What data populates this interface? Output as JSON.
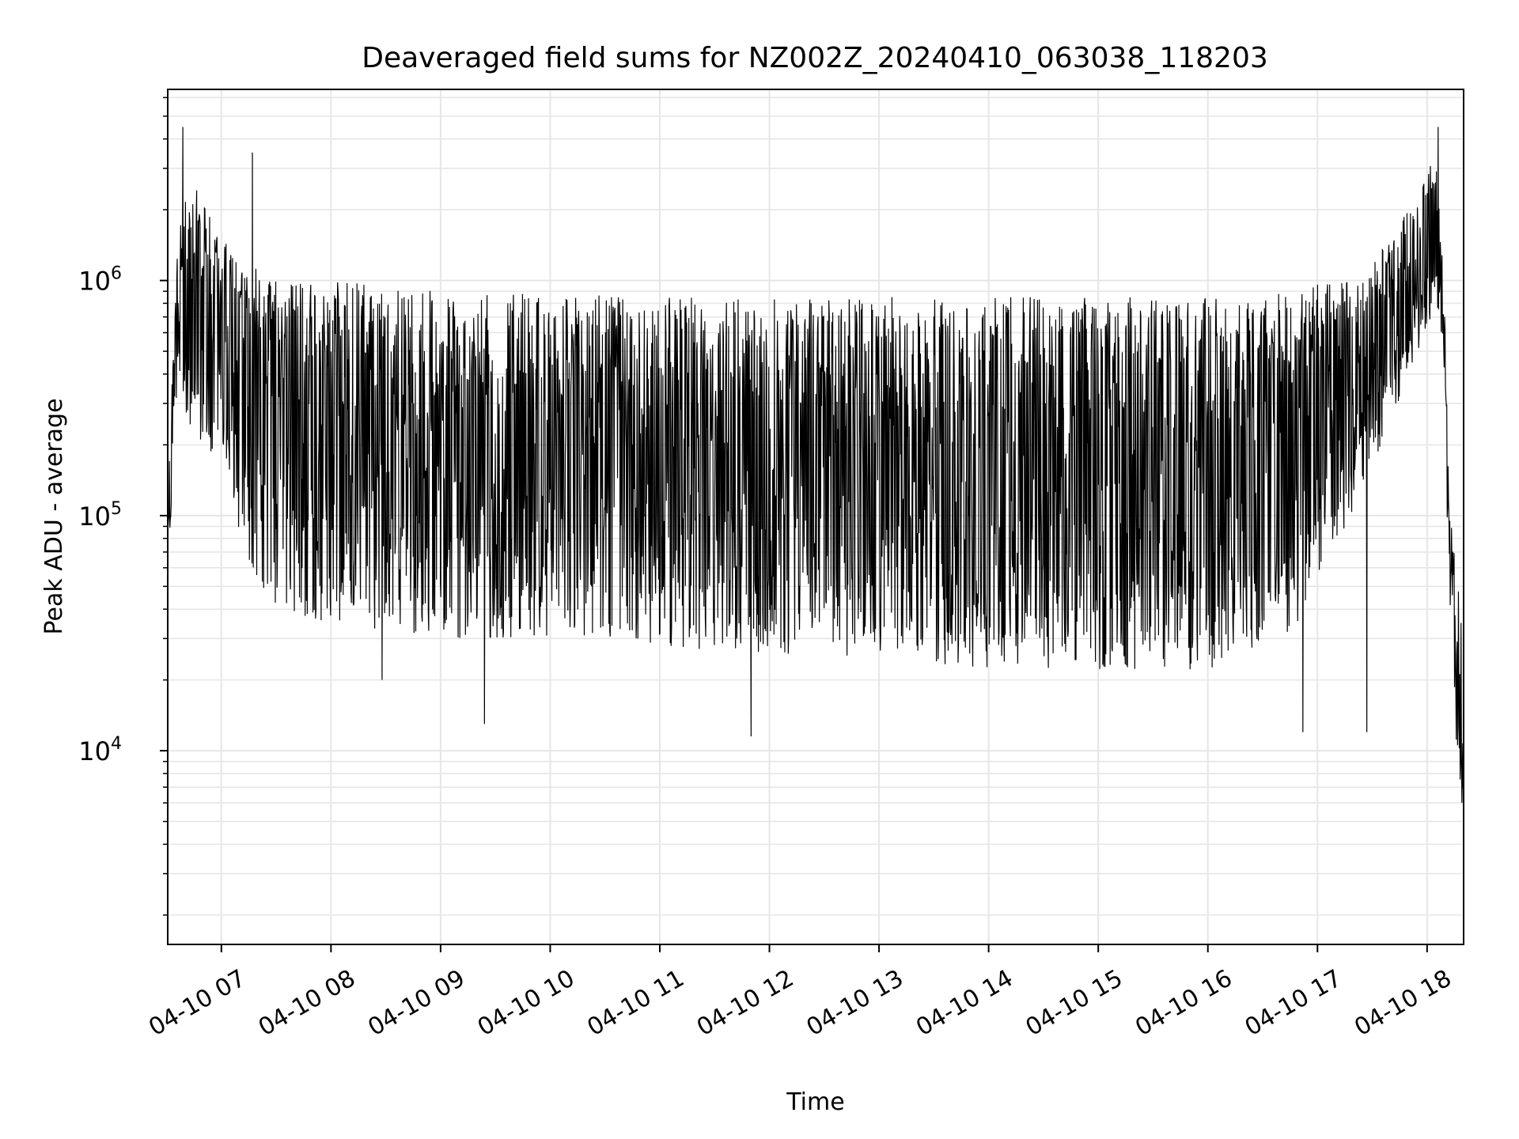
{
  "chart_data": {
    "type": "line",
    "title": "Deaveraged field sums for NZ002Z_20240410_063038_118203",
    "xlabel": "Time",
    "ylabel": "Peak ADU - average",
    "x_axis": {
      "kind": "datetime",
      "range": [
        "2024-04-10T06:30:38",
        "2024-04-10T18:20:00"
      ],
      "ticks": [
        {
          "value": "2024-04-10T07:00",
          "label": "04-10 07"
        },
        {
          "value": "2024-04-10T08:00",
          "label": "04-10 08"
        },
        {
          "value": "2024-04-10T09:00",
          "label": "04-10 09"
        },
        {
          "value": "2024-04-10T10:00",
          "label": "04-10 10"
        },
        {
          "value": "2024-04-10T11:00",
          "label": "04-10 11"
        },
        {
          "value": "2024-04-10T12:00",
          "label": "04-10 12"
        },
        {
          "value": "2024-04-10T13:00",
          "label": "04-10 13"
        },
        {
          "value": "2024-04-10T14:00",
          "label": "04-10 14"
        },
        {
          "value": "2024-04-10T15:00",
          "label": "04-10 15"
        },
        {
          "value": "2024-04-10T16:00",
          "label": "04-10 16"
        },
        {
          "value": "2024-04-10T17:00",
          "label": "04-10 17"
        },
        {
          "value": "2024-04-10T18:00",
          "label": "04-10 18"
        }
      ]
    },
    "y_axis": {
      "scale": "log",
      "range": [
        1500,
        6500000
      ],
      "ticks": [
        {
          "value": 10000,
          "base": "10",
          "exp": "4"
        },
        {
          "value": 100000,
          "base": "10",
          "exp": "5"
        },
        {
          "value": 1000000,
          "base": "10",
          "exp": "6"
        }
      ]
    },
    "grid": true,
    "line_color": "#000000",
    "grid_color": "#e6e6e6",
    "series": [
      {
        "envelope": [
          {
            "t": "2024-04-10T06:30:38",
            "low": 55000,
            "high": 120000,
            "trend": 90000
          },
          {
            "t": "2024-04-10T06:36:00",
            "low": 350000,
            "high": 1500000,
            "trend": 800000
          },
          {
            "t": "2024-04-10T06:42:00",
            "low": 250000,
            "high": 3000000,
            "trend": 1000000
          },
          {
            "t": "2024-04-10T07:00:00",
            "low": 150000,
            "high": 1500000,
            "trend": 700000
          },
          {
            "t": "2024-04-10T07:15:00",
            "low": 60000,
            "high": 1200000,
            "trend": 400000
          },
          {
            "t": "2024-04-10T07:30:00",
            "low": 40000,
            "high": 1000000,
            "trend": 300000
          },
          {
            "t": "2024-04-10T08:00:00",
            "low": 35000,
            "high": 1000000,
            "trend": 250000
          },
          {
            "t": "2024-04-10T09:00:00",
            "low": 30000,
            "high": 900000,
            "trend": 200000
          },
          {
            "t": "2024-04-10T10:00:00",
            "low": 30000,
            "high": 900000,
            "trend": 200000
          },
          {
            "t": "2024-04-10T11:00:00",
            "low": 28000,
            "high": 850000,
            "trend": 180000
          },
          {
            "t": "2024-04-10T12:00:00",
            "low": 25000,
            "high": 850000,
            "trend": 170000
          },
          {
            "t": "2024-04-10T13:00:00",
            "low": 25000,
            "high": 850000,
            "trend": 170000
          },
          {
            "t": "2024-04-10T14:00:00",
            "low": 22000,
            "high": 850000,
            "trend": 160000
          },
          {
            "t": "2024-04-10T15:00:00",
            "low": 22000,
            "high": 850000,
            "trend": 160000
          },
          {
            "t": "2024-04-10T16:00:00",
            "low": 22000,
            "high": 850000,
            "trend": 170000
          },
          {
            "t": "2024-04-10T16:45:00",
            "low": 30000,
            "high": 900000,
            "trend": 220000
          },
          {
            "t": "2024-04-10T17:30:00",
            "low": 150000,
            "high": 1200000,
            "trend": 450000
          },
          {
            "t": "2024-04-10T17:50:00",
            "low": 400000,
            "high": 2000000,
            "trend": 900000
          },
          {
            "t": "2024-04-10T18:05:00",
            "low": 800000,
            "high": 3500000,
            "trend": 1500000
          },
          {
            "t": "2024-04-10T18:09:00",
            "low": 500000,
            "high": 1200000,
            "trend": 800000
          },
          {
            "t": "2024-04-10T18:12:00",
            "low": 40000,
            "high": 120000,
            "trend": 60000
          },
          {
            "t": "2024-04-10T18:17:00",
            "low": 8000,
            "high": 50000,
            "trend": 20000
          },
          {
            "t": "2024-04-10T18:20:00",
            "low": 6000,
            "high": 30000,
            "trend": 10000
          }
        ],
        "notable_points": [
          {
            "t": "2024-04-10T06:39:00",
            "value": 4500000
          },
          {
            "t": "2024-04-10T07:17:00",
            "value": 3500000
          },
          {
            "t": "2024-04-10T08:28:00",
            "value": 20000
          },
          {
            "t": "2024-04-10T09:24:00",
            "value": 13000
          },
          {
            "t": "2024-04-10T11:50:00",
            "value": 11500
          },
          {
            "t": "2024-04-10T16:52:00",
            "value": 12000
          },
          {
            "t": "2024-04-10T17:27:00",
            "value": 12000
          },
          {
            "t": "2024-04-10T18:06:00",
            "value": 4500000
          },
          {
            "t": "2024-04-10T18:19:00",
            "value": 6000
          }
        ]
      }
    ]
  }
}
